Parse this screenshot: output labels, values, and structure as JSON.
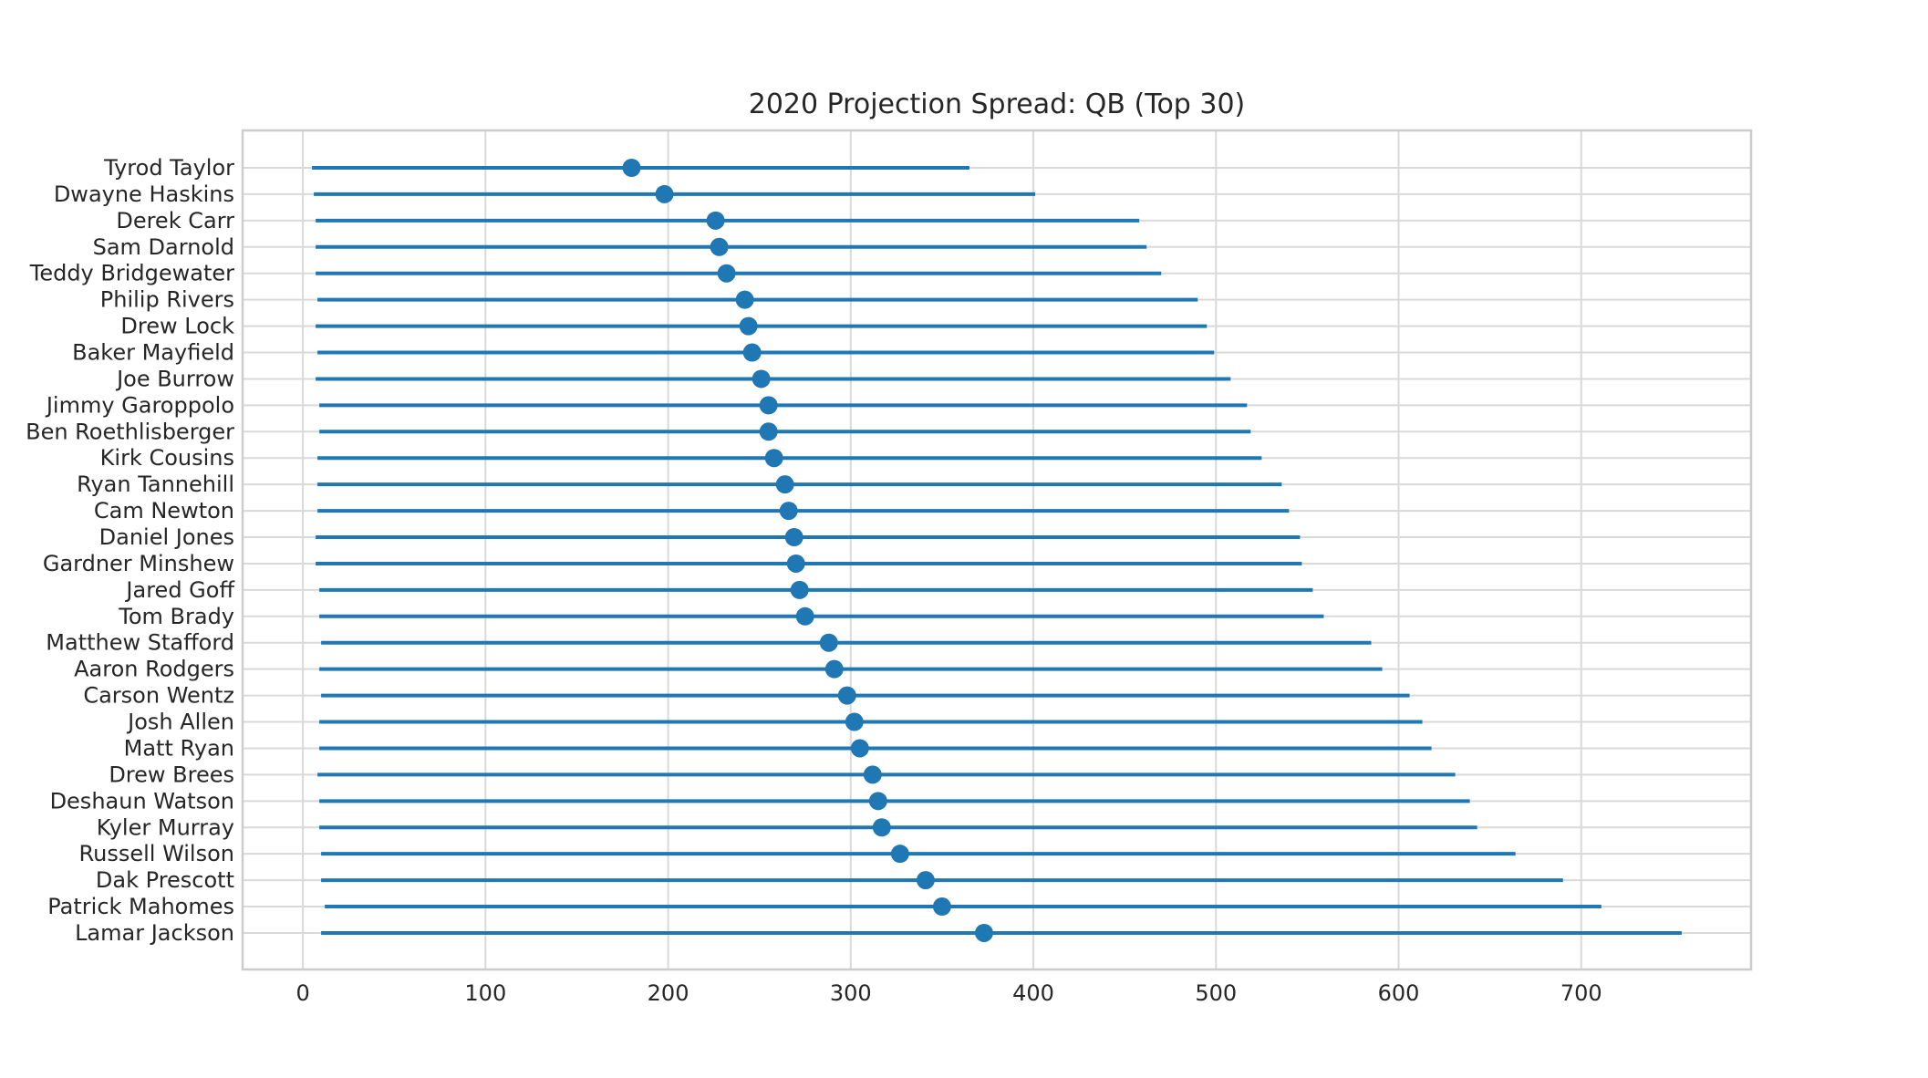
{
  "chart_data": {
    "type": "dot-range",
    "title": "2020 Projection Spread: QB (Top 30)",
    "xlabel": "",
    "ylabel": "",
    "xlim": [
      -33,
      793
    ],
    "xticks": [
      0,
      100,
      200,
      300,
      400,
      500,
      600,
      700
    ],
    "grid": true,
    "color": "#1f77b4",
    "players": [
      "Tyrod Taylor",
      "Dwayne Haskins",
      "Derek Carr",
      "Sam Darnold",
      "Teddy Bridgewater",
      "Philip Rivers",
      "Drew Lock",
      "Baker Mayfield",
      "Joe Burrow",
      "Jimmy Garoppolo",
      "Ben Roethlisberger",
      "Kirk Cousins",
      "Ryan Tannehill",
      "Cam Newton",
      "Daniel Jones",
      "Gardner Minshew",
      "Jared Goff",
      "Tom Brady",
      "Matthew Stafford",
      "Aaron Rodgers",
      "Carson Wentz",
      "Josh Allen",
      "Matt Ryan",
      "Drew Brees",
      "Deshaun Watson",
      "Kyler Murray",
      "Russell Wilson",
      "Dak Prescott",
      "Patrick Mahomes",
      "Lamar Jackson"
    ],
    "low": [
      5,
      6,
      7,
      7,
      7,
      8,
      7,
      8,
      7,
      9,
      9,
      8,
      8,
      8,
      7,
      7,
      9,
      9,
      10,
      9,
      10,
      9,
      9,
      8,
      9,
      9,
      10,
      10,
      12,
      10
    ],
    "high": [
      365,
      401,
      458,
      462,
      470,
      490,
      495,
      499,
      508,
      517,
      519,
      525,
      536,
      540,
      546,
      547,
      553,
      559,
      585,
      591,
      606,
      613,
      618,
      631,
      639,
      643,
      664,
      690,
      711,
      755
    ],
    "projection": [
      180,
      198,
      226,
      228,
      232,
      242,
      244,
      246,
      251,
      255,
      255,
      258,
      264,
      266,
      269,
      270,
      272,
      275,
      288,
      291,
      298,
      302,
      305,
      312,
      315,
      317,
      327,
      341,
      350,
      373
    ]
  }
}
